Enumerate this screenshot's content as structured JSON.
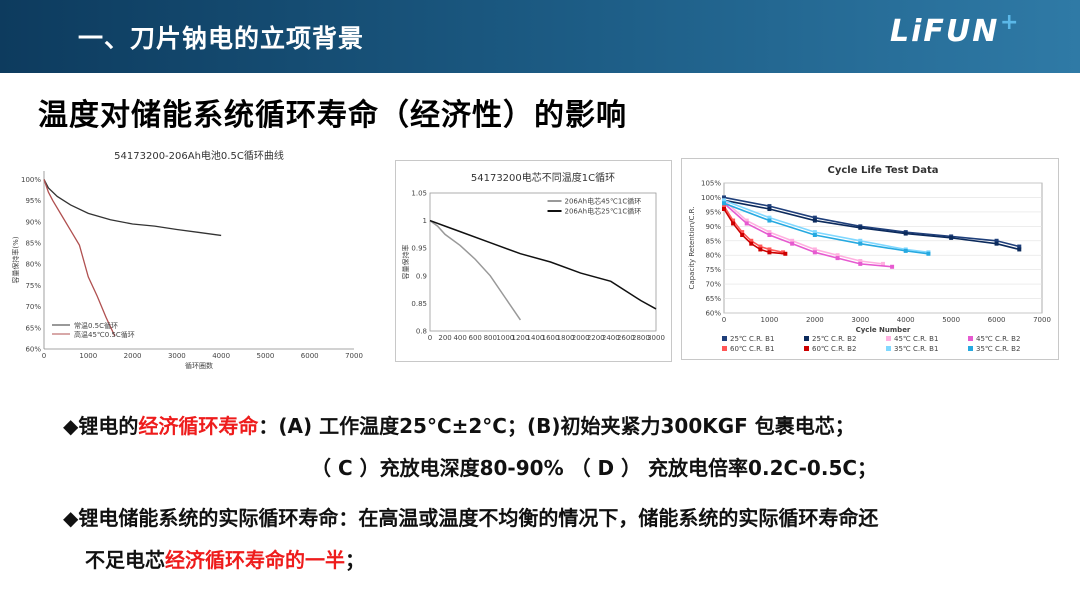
{
  "header": {
    "title": "一、刀片钠电的立项背景",
    "logo": "LiFUN",
    "logo_mark": "+"
  },
  "slide_title": "温度对储能系统循环寿命（经济性）的影响",
  "chart_data": [
    {
      "type": "line",
      "title": "54173200-206Ah电池0.5C循环曲线",
      "xlabel": "循环圈数",
      "ylabel": "容量保持率(%)",
      "xticks": [
        "0",
        "1000",
        "2000",
        "3000",
        "4000",
        "5000",
        "6000",
        "7000"
      ],
      "yticks": [
        "60%",
        "65%",
        "70%",
        "75%",
        "80%",
        "85%",
        "90%",
        "95%",
        "100%"
      ],
      "xlim": [
        0,
        7000
      ],
      "ylim": [
        60,
        102
      ],
      "legend": "bottom-left",
      "series": [
        {
          "name": "常温0.5C循环",
          "color": "#333333",
          "x": [
            0,
            100,
            300,
            600,
            1000,
            1500,
            2000,
            2500,
            3000,
            3500,
            4000
          ],
          "y": [
            100,
            98,
            96,
            94,
            92,
            90.5,
            89.5,
            89,
            88.2,
            87.5,
            86.8
          ]
        },
        {
          "name": "高温45℃0.5C循环",
          "color": "#b05050",
          "x": [
            0,
            100,
            200,
            400,
            600,
            800,
            1000,
            1200,
            1400,
            1600
          ],
          "y": [
            100,
            97,
            95,
            91.5,
            88,
            84.5,
            77,
            72.5,
            67.5,
            63
          ]
        }
      ]
    },
    {
      "type": "line",
      "title": "54173200电芯不同温度1C循环",
      "xlabel": "",
      "ylabel": "容量保持率",
      "xticks": [
        "0",
        "200",
        "400",
        "600",
        "800",
        "1000",
        "1200",
        "1400",
        "1600",
        "1800",
        "2000",
        "2200",
        "2400",
        "2600",
        "2800",
        "3000"
      ],
      "yticks": [
        "0.8",
        "0.85",
        "0.9",
        "0.95",
        "1",
        "1.05"
      ],
      "xlim": [
        0,
        3000
      ],
      "ylim": [
        0.8,
        1.05
      ],
      "legend": "top-right",
      "series": [
        {
          "name": "206Ah电芯45℃1C循环",
          "color": "#999999",
          "x": [
            0,
            100,
            200,
            400,
            600,
            800,
            1000,
            1200
          ],
          "y": [
            1.0,
            0.99,
            0.975,
            0.955,
            0.93,
            0.9,
            0.86,
            0.82
          ]
        },
        {
          "name": "206Ah电芯25℃1C循环",
          "color": "#111111",
          "x": [
            0,
            200,
            400,
            800,
            1200,
            1600,
            2000,
            2400,
            2800,
            3000
          ],
          "y": [
            1.0,
            0.99,
            0.98,
            0.96,
            0.94,
            0.925,
            0.905,
            0.89,
            0.855,
            0.84
          ]
        }
      ]
    },
    {
      "type": "line",
      "title": "Cycle Life Test Data",
      "xlabel": "Cycle Number",
      "ylabel": "Capacity Retention/C.R.",
      "xticks": [
        "0",
        "1000",
        "2000",
        "3000",
        "4000",
        "5000",
        "6000",
        "7000"
      ],
      "yticks": [
        "60%",
        "65%",
        "70%",
        "75%",
        "80%",
        "85%",
        "90%",
        "95%",
        "100%",
        "105%"
      ],
      "xlim": [
        0,
        7000
      ],
      "ylim": [
        60,
        105
      ],
      "legend": "bottom",
      "series": [
        {
          "name": "25℃ C.R. B1",
          "color": "#1f3f7a",
          "x": [
            0,
            1000,
            2000,
            3000,
            4000,
            5000,
            6000,
            6500
          ],
          "y": [
            100,
            97,
            93,
            90,
            88,
            86.5,
            85,
            83
          ]
        },
        {
          "name": "25℃ C.R. B2",
          "color": "#0b2a5c",
          "x": [
            0,
            1000,
            2000,
            3000,
            4000,
            5000,
            6000,
            6500
          ],
          "y": [
            99,
            96,
            92,
            89.5,
            87.5,
            86,
            84,
            82
          ]
        },
        {
          "name": "45℃ C.R. B1",
          "color": "#ffb0e0",
          "x": [
            0,
            500,
            1000,
            1500,
            2000,
            2500,
            3000,
            3500
          ],
          "y": [
            99,
            92,
            88,
            85,
            82,
            80,
            78,
            77
          ]
        },
        {
          "name": "45℃ C.R. B2",
          "color": "#e65ad0",
          "x": [
            0,
            500,
            1000,
            1500,
            2000,
            2500,
            3000,
            3700
          ],
          "y": [
            98,
            91,
            87,
            84,
            81,
            79,
            77,
            76
          ]
        },
        {
          "name": "60℃ C.R. B1",
          "color": "#ff5555",
          "x": [
            0,
            200,
            400,
            600,
            800,
            1000,
            1300
          ],
          "y": [
            97,
            92,
            88,
            85,
            83,
            82,
            81
          ]
        },
        {
          "name": "60℃ C.R. B2",
          "color": "#cc0000",
          "x": [
            0,
            200,
            400,
            600,
            800,
            1000,
            1350
          ],
          "y": [
            96,
            91,
            87,
            84,
            82,
            81,
            80.5
          ]
        },
        {
          "name": "35℃ C.R. B1",
          "color": "#80d8ff",
          "x": [
            0,
            1000,
            2000,
            3000,
            4000,
            4500
          ],
          "y": [
            99,
            93,
            88,
            85,
            82,
            81
          ]
        },
        {
          "name": "35℃ C.R. B2",
          "color": "#26a9e0",
          "x": [
            0,
            1000,
            2000,
            3000,
            4000,
            4500
          ],
          "y": [
            98,
            92,
            87,
            84,
            81.5,
            80.5
          ]
        }
      ]
    }
  ],
  "bullets": {
    "b1_prefix": "◆锂电的",
    "b1_red": "经济循环寿命",
    "b1_rest": "：(A) 工作温度25°C±2°C；(B)初始夹紧力300KGF 包裹电芯；",
    "b1_line2": "（ C ）充放电深度80-90% （ D ） 充放电倍率0.2C-0.5C；",
    "b2_line1": "◆锂电储能系统的实际循环寿命：在高温或温度不均衡的情况下，储能系统的实际循环寿命还",
    "b2_prefix": "不足电芯",
    "b2_red": "经济循环寿命的一半",
    "b2_suffix": "；"
  }
}
